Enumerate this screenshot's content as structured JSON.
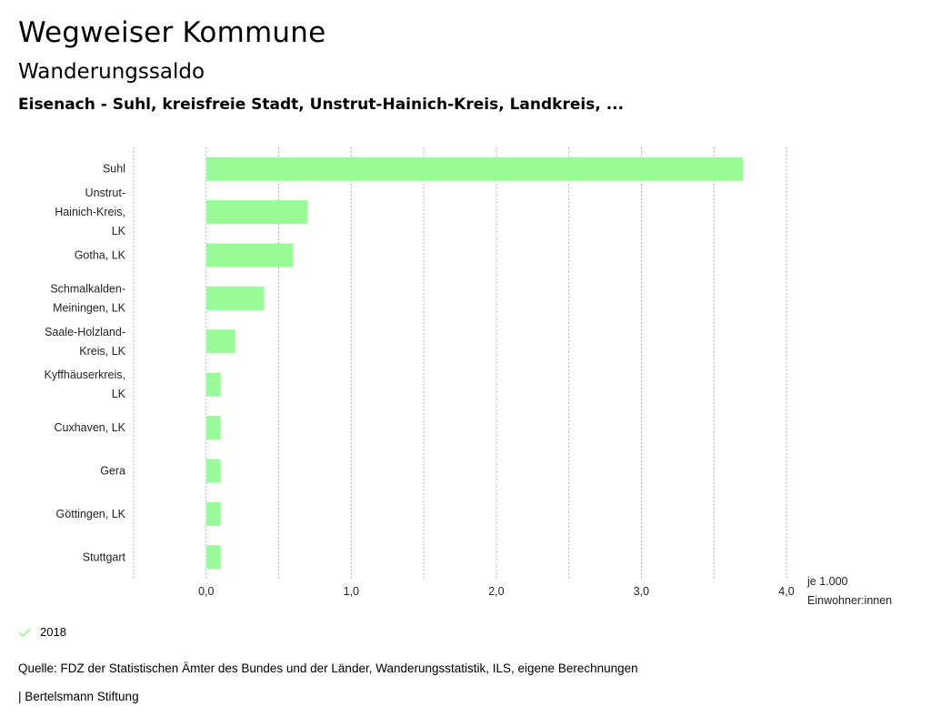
{
  "header": {
    "title": "Wegweiser Kommune",
    "subtitle": "Wanderungssaldo",
    "region": "Eisenach - Suhl, kreisfreie Stadt, Unstrut-Hainich-Kreis, Landkreis, ..."
  },
  "chart_data": {
    "type": "bar",
    "orientation": "horizontal",
    "categories": [
      [
        "Suhl"
      ],
      [
        "Unstrut-",
        "Hainich-Kreis,",
        "LK"
      ],
      [
        "Gotha, LK"
      ],
      [
        "Schmalkalden-",
        "Meiningen, LK"
      ],
      [
        "Saale-Holzland-",
        "Kreis, LK"
      ],
      [
        "Kyffhäuserkreis,",
        "LK"
      ],
      [
        "Cuxhaven, LK"
      ],
      [
        "Gera"
      ],
      [
        "Göttingen, LK"
      ],
      [
        "Stuttgart"
      ]
    ],
    "series": [
      {
        "name": "2018",
        "values": [
          3.7,
          0.7,
          0.6,
          0.4,
          0.2,
          0.1,
          0.1,
          0.1,
          0.1,
          0.1
        ]
      }
    ],
    "xlim": [
      -0.5,
      4.0
    ],
    "xticks": [
      0,
      1,
      2,
      3,
      4
    ],
    "xtick_labels": [
      "0,0",
      "1,0",
      "2,0",
      "3,0",
      "4,0"
    ],
    "xlabel": [
      "je 1.000",
      "Einwohner:innen"
    ],
    "grid": true,
    "bar_color": "#98fb98"
  },
  "legend": {
    "label": "2018",
    "color": "#98fb98"
  },
  "footer": {
    "source": "Quelle: FDZ der Statistischen Ämter des Bundes und der Länder, Wanderungsstatistik, ILS, eigene Berechnungen",
    "publisher": "| Bertelsmann Stiftung"
  }
}
